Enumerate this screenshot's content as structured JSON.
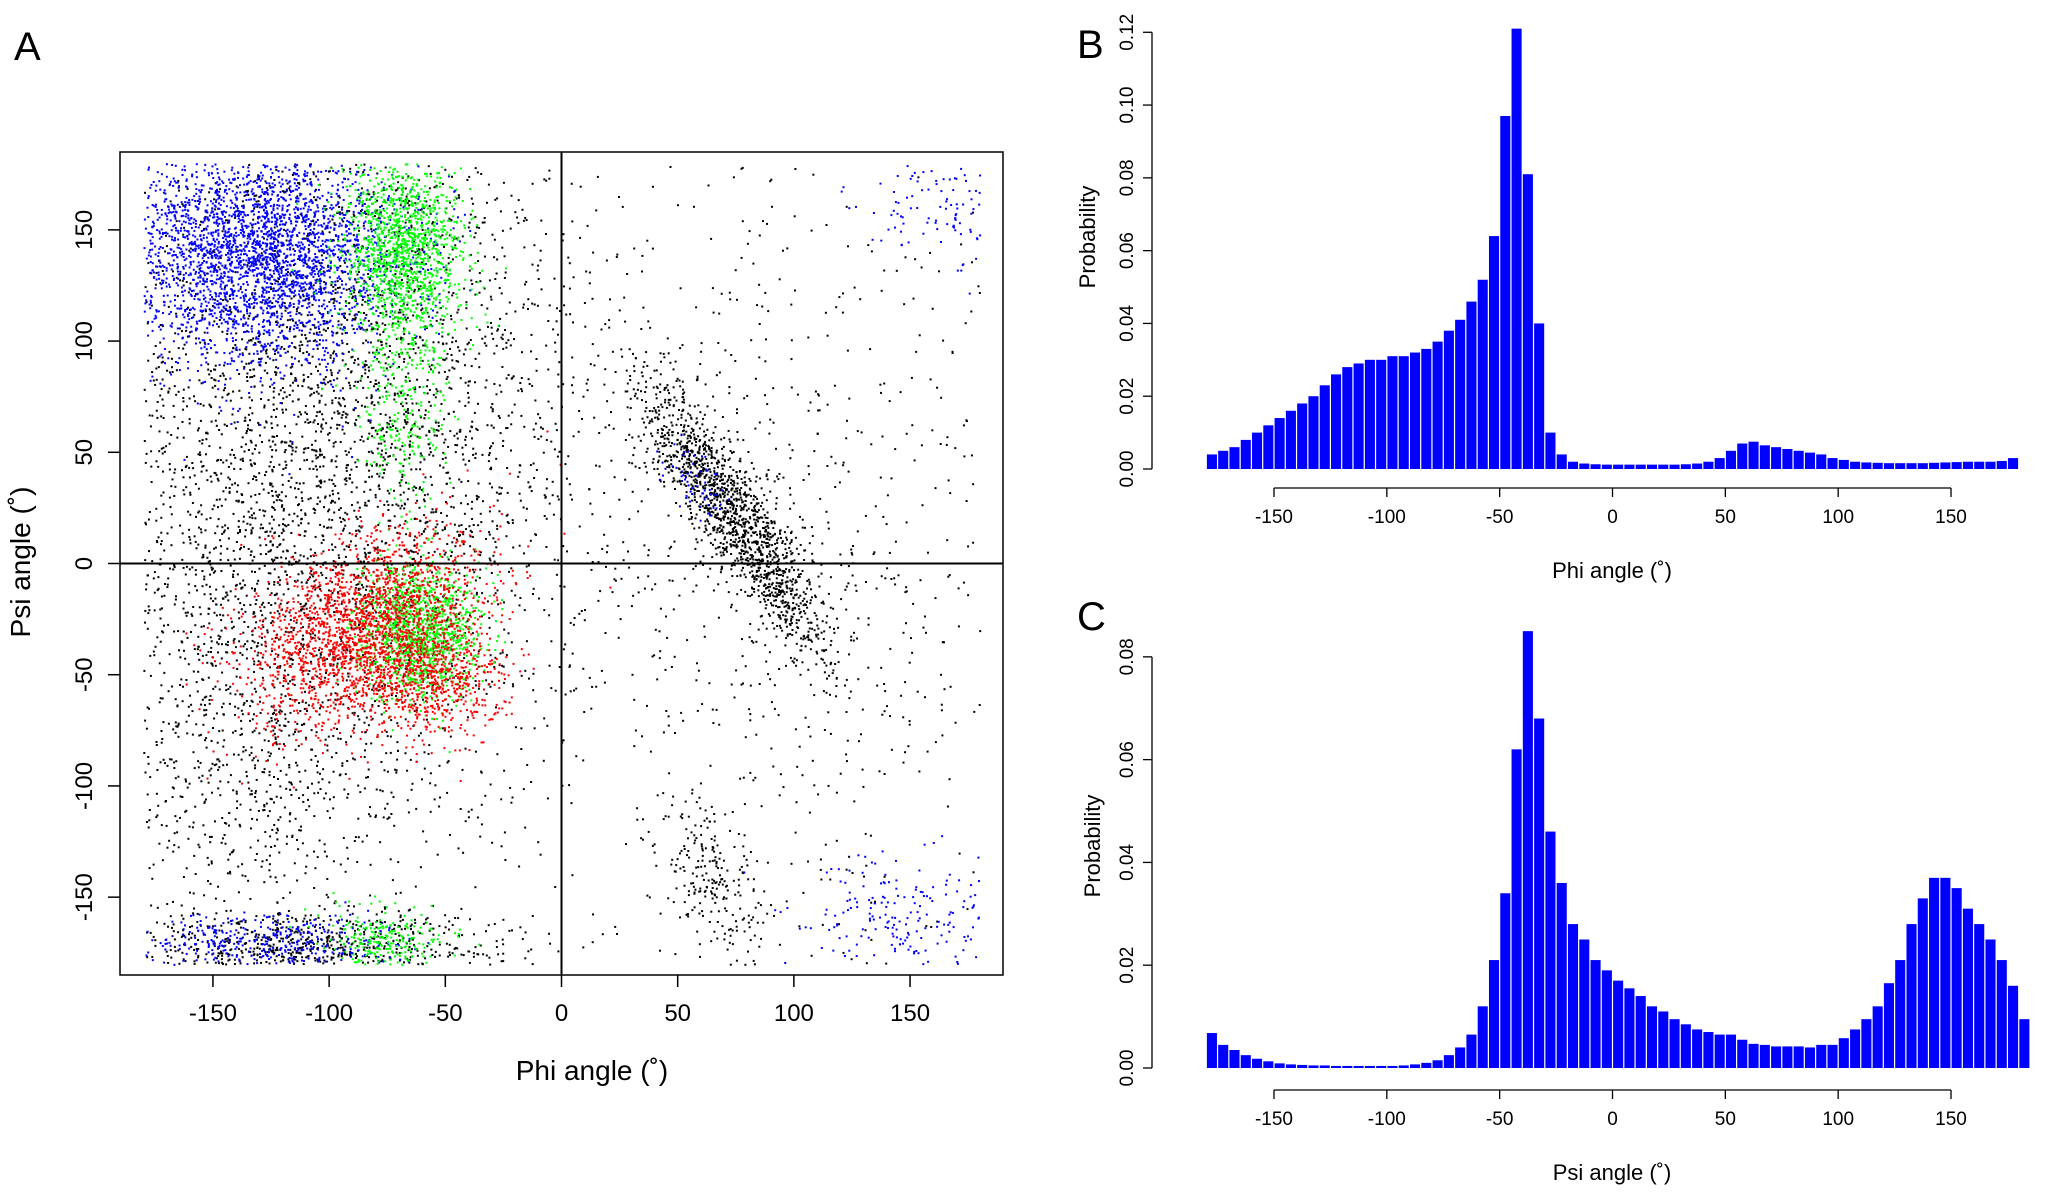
{
  "colors": {
    "black": "#000000",
    "blue": "#0000ff",
    "green": "#00ff00",
    "red": "#ff0000",
    "bar": "#0000ff"
  },
  "chart_data": [
    {
      "panel": "A",
      "type": "scatter",
      "xlabel": "Phi angle (˚)",
      "ylabel": "Psi angle (˚)",
      "xlim": [
        -190,
        190
      ],
      "ylim": [
        -185,
        185
      ],
      "xticks": [
        -150,
        -100,
        -50,
        0,
        50,
        100,
        150
      ],
      "yticks": [
        -150,
        -100,
        -50,
        0,
        50,
        100,
        150
      ],
      "reference_lines": {
        "x": 0,
        "y": 0
      },
      "legend": "none",
      "regions": [
        {
          "color": "black",
          "cx": -95,
          "cy": 60,
          "sx": 55,
          "sy": 95,
          "rho": 0,
          "n": 4200
        },
        {
          "color": "black",
          "cx": -140,
          "cy": -60,
          "sx": 30,
          "sy": 70,
          "rho": 0,
          "n": 900
        },
        {
          "color": "black",
          "cx": -110,
          "cy": -172,
          "sx": 45,
          "sy": 8,
          "rho": 0,
          "n": 700
        },
        {
          "color": "black",
          "cx": 75,
          "cy": 20,
          "sx": 20,
          "sy": 30,
          "rho": -0.88,
          "n": 1500
        },
        {
          "color": "black",
          "cx": 100,
          "cy": 0,
          "sx": 55,
          "sy": 100,
          "rho": 0,
          "n": 800
        },
        {
          "color": "black",
          "cx": 65,
          "cy": -145,
          "sx": 12,
          "sy": 20,
          "rho": -0.5,
          "n": 220
        },
        {
          "color": "blue",
          "cx": -130,
          "cy": 140,
          "sx": 30,
          "sy": 25,
          "rho": 0,
          "n": 3200
        },
        {
          "color": "blue",
          "cx": -125,
          "cy": -170,
          "sx": 28,
          "sy": 7,
          "rho": 0,
          "n": 400
        },
        {
          "color": "blue",
          "cx": 160,
          "cy": 160,
          "sx": 18,
          "sy": 15,
          "rho": 0,
          "n": 120
        },
        {
          "color": "blue",
          "cx": 150,
          "cy": -160,
          "sx": 28,
          "sy": 15,
          "rho": 0,
          "n": 220
        },
        {
          "color": "blue",
          "cx": 55,
          "cy": 40,
          "sx": 8,
          "sy": 10,
          "rho": -0.6,
          "n": 60
        },
        {
          "color": "green",
          "cx": -68,
          "cy": 140,
          "sx": 13,
          "sy": 22,
          "rho": 0,
          "n": 1400
        },
        {
          "color": "green",
          "cx": -68,
          "cy": 70,
          "sx": 10,
          "sy": 22,
          "rho": 0,
          "n": 250
        },
        {
          "color": "green",
          "cx": -62,
          "cy": -30,
          "sx": 13,
          "sy": 15,
          "rho": 0,
          "n": 1300
        },
        {
          "color": "green",
          "cx": -75,
          "cy": -170,
          "sx": 14,
          "sy": 8,
          "rho": 0,
          "n": 250
        },
        {
          "color": "red",
          "cx": -85,
          "cy": -30,
          "sx": 25,
          "sy": 22,
          "rho": 0.35,
          "n": 2200
        },
        {
          "color": "red",
          "cx": -55,
          "cy": -55,
          "sx": 15,
          "sy": 12,
          "rho": 0,
          "n": 500
        }
      ]
    },
    {
      "panel": "B",
      "type": "bar",
      "xlabel": "Phi angle (˚)",
      "ylabel": "Probability",
      "xlim": [
        -185,
        185
      ],
      "ylim": [
        0,
        0.122
      ],
      "xticks": [
        -150,
        -100,
        -50,
        0,
        50,
        100,
        150
      ],
      "yticks": [
        0.0,
        0.02,
        0.04,
        0.06,
        0.08,
        0.1,
        0.12
      ],
      "ytick_labels": [
        "0.00",
        "0.02",
        "0.04",
        "0.06",
        "0.08",
        "0.10",
        "0.12"
      ],
      "bin_start": -180,
      "bin_width": 5,
      "values": [
        0.004,
        0.005,
        0.006,
        0.008,
        0.01,
        0.012,
        0.014,
        0.016,
        0.018,
        0.02,
        0.023,
        0.026,
        0.028,
        0.029,
        0.03,
        0.03,
        0.031,
        0.031,
        0.032,
        0.033,
        0.035,
        0.038,
        0.041,
        0.046,
        0.052,
        0.064,
        0.097,
        0.121,
        0.081,
        0.04,
        0.01,
        0.004,
        0.002,
        0.0015,
        0.0013,
        0.0012,
        0.0012,
        0.0012,
        0.0012,
        0.0012,
        0.0012,
        0.0012,
        0.0013,
        0.0015,
        0.002,
        0.003,
        0.005,
        0.007,
        0.0075,
        0.0065,
        0.006,
        0.0055,
        0.005,
        0.0045,
        0.004,
        0.003,
        0.0025,
        0.002,
        0.0018,
        0.0017,
        0.0016,
        0.0016,
        0.0016,
        0.0016,
        0.0017,
        0.0018,
        0.0019,
        0.002,
        0.002,
        0.002,
        0.0022,
        0.003
      ]
    },
    {
      "panel": "C",
      "type": "bar",
      "xlabel": "Psi angle (˚)",
      "ylabel": "Probability",
      "xlim": [
        -185,
        185
      ],
      "ylim": [
        0,
        0.086
      ],
      "xticks": [
        -150,
        -100,
        -50,
        0,
        50,
        100,
        150
      ],
      "yticks": [
        0.0,
        0.02,
        0.04,
        0.06,
        0.08
      ],
      "ytick_labels": [
        "0.00",
        "0.02",
        "0.04",
        "0.06",
        "0.08"
      ],
      "bin_start": -180,
      "bin_width": 5,
      "values": [
        0.0068,
        0.0045,
        0.0035,
        0.0025,
        0.0018,
        0.0013,
        0.0009,
        0.0007,
        0.0006,
        0.0005,
        0.0005,
        0.0004,
        0.0004,
        0.0004,
        0.0004,
        0.0004,
        0.0004,
        0.0005,
        0.0007,
        0.001,
        0.0015,
        0.0025,
        0.004,
        0.0065,
        0.012,
        0.021,
        0.034,
        0.062,
        0.085,
        0.068,
        0.046,
        0.036,
        0.028,
        0.025,
        0.021,
        0.019,
        0.017,
        0.0155,
        0.014,
        0.012,
        0.011,
        0.0095,
        0.0085,
        0.0075,
        0.007,
        0.0065,
        0.0065,
        0.0055,
        0.0047,
        0.0045,
        0.0042,
        0.0042,
        0.0042,
        0.004,
        0.0045,
        0.0045,
        0.0058,
        0.0075,
        0.0095,
        0.012,
        0.0165,
        0.021,
        0.028,
        0.033,
        0.037,
        0.037,
        0.035,
        0.031,
        0.028,
        0.025,
        0.021,
        0.016,
        0.0095
      ]
    }
  ],
  "panel_labels": {
    "a": "A",
    "b": "B",
    "c": "C"
  }
}
